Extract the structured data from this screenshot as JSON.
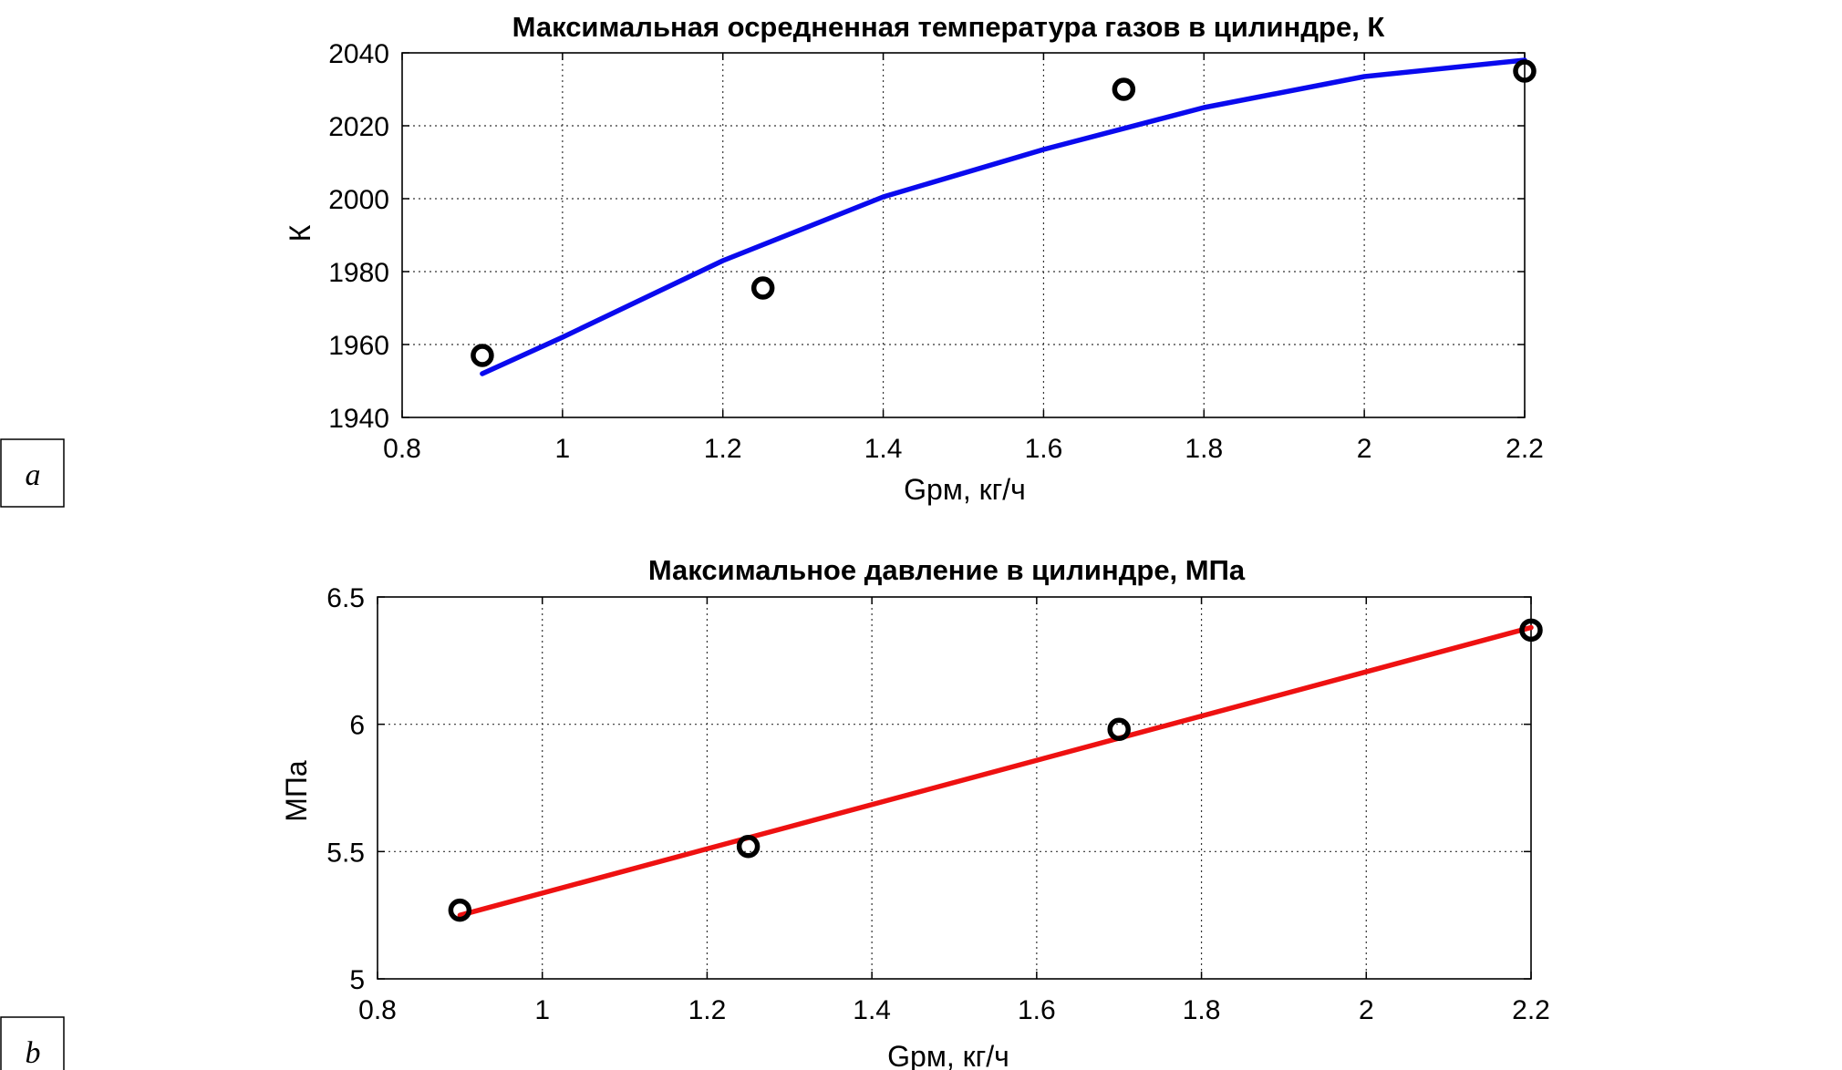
{
  "figure": {
    "panels": [
      {
        "letter": "a"
      },
      {
        "letter": "b"
      }
    ]
  },
  "chart_data": [
    {
      "type": "scatter",
      "title": "Максимальная осредненная температура газов в цилиндре, К",
      "xlabel": "Gрм, кг/ч",
      "ylabel": "К",
      "xlim": [
        0.8,
        2.2
      ],
      "ylim": [
        1940,
        2040
      ],
      "xticks": [
        "0.8",
        "1",
        "1.2",
        "1.4",
        "1.6",
        "1.8",
        "2",
        "2.2"
      ],
      "yticks": [
        "1940",
        "1960",
        "1980",
        "2000",
        "2020",
        "2040"
      ],
      "grid": true,
      "series": [
        {
          "kind": "markers",
          "marker": "circle",
          "color": "#000000",
          "x": [
            0.9,
            1.25,
            1.7,
            2.2
          ],
          "y": [
            1957,
            1975.5,
            2030,
            2035
          ]
        },
        {
          "kind": "line",
          "color": "#0a0aee",
          "x": [
            0.9,
            1.0,
            1.2,
            1.4,
            1.6,
            1.8,
            2.0,
            2.2
          ],
          "y": [
            1952,
            1962,
            1983,
            2000.5,
            2013.5,
            2025,
            2033.5,
            2038
          ]
        }
      ]
    },
    {
      "type": "scatter",
      "title": "Максимальное давление в цилиндре, МПа",
      "xlabel": "Gрм, кг/ч",
      "ylabel": "МПа",
      "xlim": [
        0.8,
        2.2
      ],
      "ylim": [
        5,
        6.5
      ],
      "xticks": [
        "0.8",
        "1",
        "1.2",
        "1.4",
        "1.6",
        "1.8",
        "2",
        "2.2"
      ],
      "yticks": [
        "5",
        "5.5",
        "6",
        "6.5"
      ],
      "grid": true,
      "series": [
        {
          "kind": "markers",
          "marker": "circle",
          "color": "#000000",
          "x": [
            0.9,
            1.25,
            1.7,
            2.2
          ],
          "y": [
            5.27,
            5.52,
            5.98,
            6.37
          ]
        },
        {
          "kind": "line",
          "color": "#ee1111",
          "x": [
            0.9,
            2.2
          ],
          "y": [
            5.25,
            6.38
          ]
        }
      ]
    }
  ]
}
